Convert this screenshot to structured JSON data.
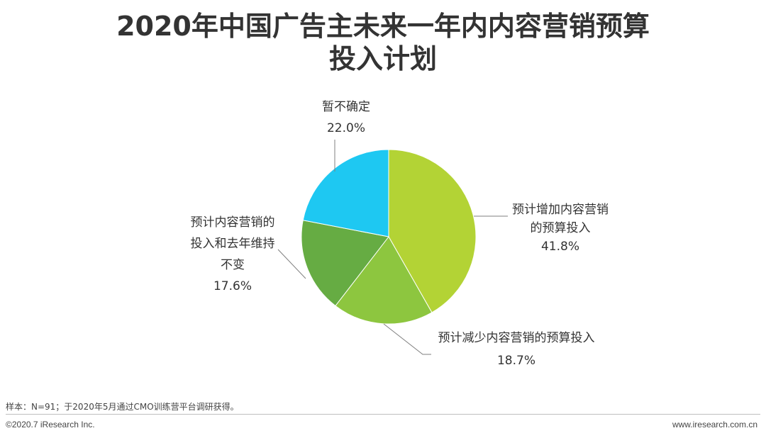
{
  "title_line1": "2020年中国广告主未来一年内内容营销预算",
  "title_line2": "投入计划",
  "chart_data": {
    "type": "pie",
    "slices": [
      {
        "label_lines": [
          "预计增加内容营销",
          "的预算投入"
        ],
        "value": 41.8,
        "value_text": "41.8%",
        "color": "#b3d335"
      },
      {
        "label_lines": [
          "预计减少内容营销的预算投入"
        ],
        "value": 18.7,
        "value_text": "18.7%",
        "color": "#8dc63f"
      },
      {
        "label_lines": [
          "预计内容营销的",
          "投入和去年维持",
          "不变"
        ],
        "value": 17.6,
        "value_text": "17.6%",
        "color": "#66ac43"
      },
      {
        "label_lines": [
          "暂不确定"
        ],
        "value": 22.0,
        "value_text": "22.0%",
        "color": "#1ec8f2"
      }
    ]
  },
  "footer": {
    "note": "样本：N=91；于2020年5月通过CMO训练营平台调研获得。",
    "copyright": "©2020.7 iResearch Inc.",
    "website": "www.iresearch.com.cn"
  }
}
